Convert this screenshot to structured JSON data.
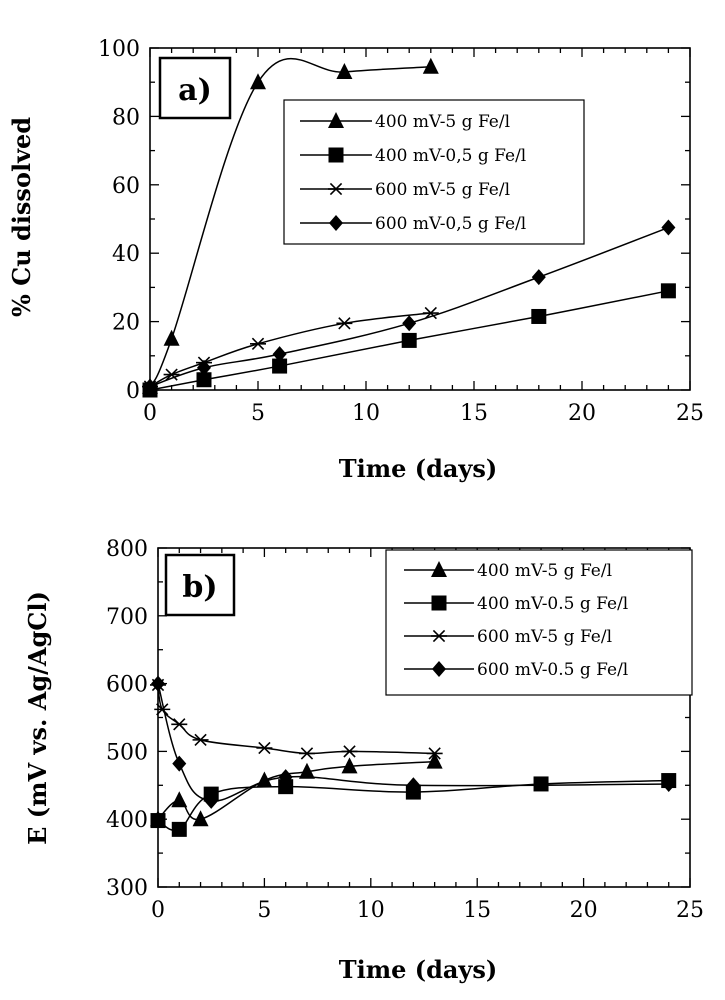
{
  "chart_data": [
    {
      "type": "line",
      "panel_label": "a)",
      "xlabel": "Time (days)",
      "ylabel": "% Cu dissolved",
      "xlim": [
        0,
        25
      ],
      "ylim": [
        0,
        100
      ],
      "xticks": [
        0,
        5,
        10,
        15,
        20,
        25
      ],
      "xtick_labels": [
        "0",
        "5",
        "10",
        "15",
        "20",
        "25"
      ],
      "yticks": [
        0,
        20,
        40,
        60,
        80,
        100
      ],
      "ytick_labels": [
        "0",
        "20",
        "40",
        "60",
        "80",
        "100"
      ],
      "legend_position": "upper-right",
      "series": [
        {
          "name": "400 mV-5 g Fe/l",
          "marker": "triangle",
          "x": [
            0,
            1,
            5,
            9,
            13
          ],
          "y": [
            1,
            15,
            90,
            93,
            94.5
          ]
        },
        {
          "name": "400 mV-0,5 g Fe/l",
          "marker": "square",
          "x": [
            0,
            2.5,
            6,
            12,
            18,
            24
          ],
          "y": [
            0,
            3,
            7,
            14.5,
            21.5,
            29
          ]
        },
        {
          "name": "600 mV-5 g Fe/l",
          "marker": "star",
          "x": [
            0,
            1,
            2.5,
            5,
            9,
            13
          ],
          "y": [
            1,
            4.5,
            8,
            13.5,
            19.5,
            22.5
          ]
        },
        {
          "name": "600 mV-0,5 g Fe/l",
          "marker": "diamond",
          "x": [
            0,
            2.5,
            6,
            12,
            18,
            24
          ],
          "y": [
            1,
            6.5,
            10.5,
            19.5,
            33,
            47.5
          ]
        }
      ]
    },
    {
      "type": "line",
      "panel_label": "b)",
      "xlabel": "Time (days)",
      "ylabel": "E (mV vs. Ag/AgCl)",
      "xlim": [
        0,
        25
      ],
      "ylim": [
        300,
        800
      ],
      "xticks": [
        0,
        5,
        10,
        15,
        20,
        25
      ],
      "xtick_labels": [
        "0",
        "5",
        "10",
        "15",
        "20",
        "25"
      ],
      "yticks": [
        300,
        400,
        500,
        600,
        700,
        800
      ],
      "ytick_labels": [
        "300",
        "400",
        "500",
        "600",
        "700",
        "800"
      ],
      "legend_position": "upper-right",
      "series": [
        {
          "name": "400 mV-5 g Fe/l",
          "marker": "triangle",
          "x": [
            0,
            1,
            2,
            5,
            7,
            9,
            13
          ],
          "y": [
            400,
            428,
            400,
            457,
            470,
            478,
            485
          ]
        },
        {
          "name": "400 mV-0.5 g Fe/l",
          "marker": "square",
          "x": [
            0,
            1,
            2.5,
            6,
            12,
            18,
            24
          ],
          "y": [
            398,
            385,
            437,
            448,
            440,
            452,
            457
          ]
        },
        {
          "name": "600 mV-5 g Fe/l",
          "marker": "star",
          "x": [
            0,
            0.2,
            1,
            2,
            5,
            7,
            9,
            13
          ],
          "y": [
            598,
            562,
            540,
            517,
            505,
            497,
            500,
            497
          ]
        },
        {
          "name": "600 mV-0.5 g Fe/l",
          "marker": "diamond",
          "x": [
            0,
            1,
            2.5,
            6,
            12,
            24
          ],
          "y": [
            600,
            482,
            427,
            462,
            450,
            452
          ]
        }
      ]
    }
  ]
}
